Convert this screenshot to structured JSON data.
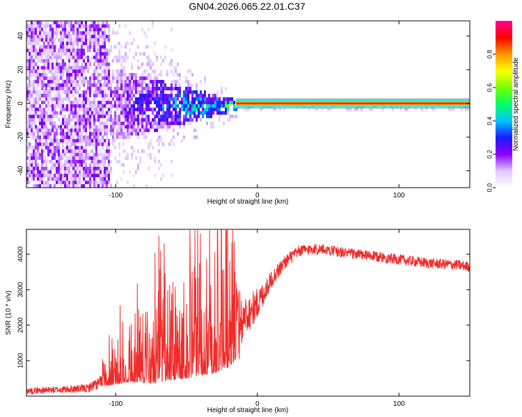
{
  "title": "GN04.2026.065.22.01.C37",
  "chart_data": [
    {
      "type": "heatmap",
      "name": "spectrogram",
      "xlabel": "Height of straight line (km)",
      "ylabel": "Frequency (Hz)",
      "xlim": [
        -163,
        150
      ],
      "ylim": [
        -50,
        49
      ],
      "xticks": [
        -100,
        0,
        100
      ],
      "yticks": [
        -40,
        -20,
        0,
        20,
        40
      ],
      "colorbar": {
        "label": "Normalized spectral amplitude",
        "range": [
          0,
          1
        ],
        "ticks": [
          "0.0",
          "0.2",
          "0.4",
          "0.6",
          "0.8"
        ],
        "tick_values": [
          0.0,
          0.2,
          0.4,
          0.6,
          0.8
        ],
        "colors": [
          "#ffffff",
          "#e0c8ff",
          "#8c00ff",
          "#1a1aff",
          "#00c8ff",
          "#00ff64",
          "#78ff00",
          "#ffff00",
          "#ff9600",
          "#ff0000",
          "#ff0096"
        ]
      },
      "description_regions": {
        "noise_band": {
          "x_range": [
            -163,
            -105
          ],
          "freq_halfwidth": 50,
          "amplitude": 0.15
        },
        "spread_region": {
          "x_range": [
            -105,
            -15
          ],
          "freq_halfwidth_start": 22,
          "freq_halfwidth_end": 3,
          "amplitude_start": 0.15,
          "amplitude_end": 0.45
        },
        "carrier_line": {
          "x_range": [
            -15,
            150
          ],
          "freq_halfwidth": 1.5,
          "amplitude": 0.9
        }
      }
    },
    {
      "type": "line",
      "name": "snr",
      "color": "#ef2b2b",
      "xlabel": "Height of straight line (km)",
      "ylabel": "SNR (10 * v/v)",
      "xlim": [
        -163,
        150
      ],
      "ylim": [
        0,
        4700
      ],
      "xticks": [
        -100,
        0,
        100
      ],
      "yticks": [
        1000,
        2000,
        3000,
        4000
      ],
      "x": [
        -163,
        -140,
        -120,
        -110,
        -100,
        -90,
        -80,
        -70,
        -60,
        -50,
        -40,
        -30,
        -20,
        -15,
        -10,
        0,
        10,
        20,
        30,
        40,
        50,
        60,
        80,
        100,
        120,
        140,
        150
      ],
      "y": [
        150,
        180,
        220,
        400,
        600,
        800,
        850,
        900,
        1000,
        1100,
        1300,
        1500,
        1700,
        1900,
        2200,
        2600,
        3300,
        3800,
        4100,
        4150,
        4120,
        4050,
        3950,
        3850,
        3750,
        3700,
        3650
      ],
      "noise_amplitude": [
        90,
        100,
        120,
        200,
        450,
        650,
        800,
        900,
        900,
        1000,
        1200,
        1400,
        1500,
        1400,
        600,
        450,
        250,
        200,
        170,
        160,
        150,
        150,
        150,
        150,
        150,
        150,
        150
      ]
    }
  ]
}
